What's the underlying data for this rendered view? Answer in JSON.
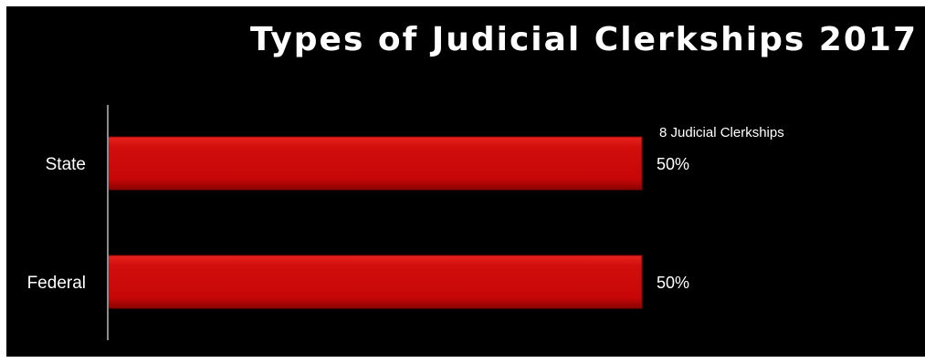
{
  "chart_data": {
    "type": "bar",
    "orientation": "horizontal",
    "title": "Types of Judicial Clerkships 2017",
    "annotation": "8 Judicial Clerkships",
    "categories": [
      "State",
      "Federal"
    ],
    "values": [
      50,
      50
    ],
    "value_labels": [
      "50%",
      "50%"
    ],
    "xlim": [
      0,
      100
    ],
    "xlabel": "",
    "ylabel": "",
    "grid": false,
    "legend": "none",
    "colors": {
      "background": "#000000",
      "bar": "#cc0a0a",
      "text": "#ffffff",
      "axis": "#8c8c8c"
    }
  }
}
